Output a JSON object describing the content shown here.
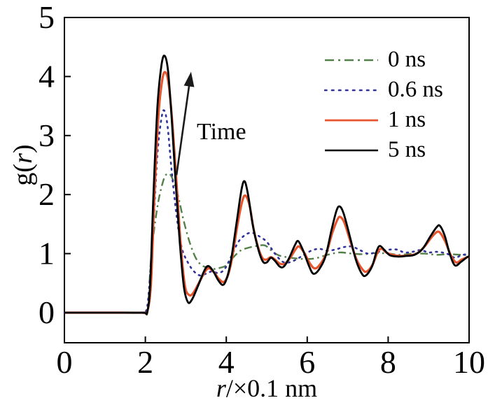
{
  "figure": {
    "background": "#ffffff"
  },
  "axis": {
    "x_title_italic": "r",
    "x_title_rest": "/×0.1 nm",
    "y_title_pre": "g(",
    "y_title_italic": "r",
    "y_title_post": ")"
  },
  "chart_data": {
    "type": "line",
    "title": "",
    "xlabel": "r/×0.1 nm",
    "ylabel": "g(r)",
    "xlim": [
      0,
      10
    ],
    "ylim": [
      -0.51,
      5
    ],
    "x_ticks": [
      0,
      2,
      4,
      6,
      8,
      10
    ],
    "y_ticks": [
      0,
      1,
      2,
      3,
      4,
      5
    ],
    "grid": false,
    "legend_position": "upper-right",
    "legend_frame": false,
    "annotation": {
      "text": "Time",
      "arrow_from": [
        2.77,
        2.33
      ],
      "arrow_to": [
        3.13,
        4.08
      ]
    },
    "series": [
      {
        "name": "0 ns",
        "color": "#538048",
        "style": "dash-dot",
        "width": 2.4,
        "points": [
          [
            0,
            0
          ],
          [
            0.5,
            0
          ],
          [
            1,
            0
          ],
          [
            1.5,
            0
          ],
          [
            1.9,
            0
          ],
          [
            2.0,
            0
          ],
          [
            2.06,
            0.05
          ],
          [
            2.15,
            1.0
          ],
          [
            2.3,
            1.8
          ],
          [
            2.45,
            2.25
          ],
          [
            2.55,
            2.35
          ],
          [
            2.65,
            2.3
          ],
          [
            2.8,
            2.0
          ],
          [
            2.95,
            1.55
          ],
          [
            3.1,
            1.18
          ],
          [
            3.25,
            0.92
          ],
          [
            3.4,
            0.8
          ],
          [
            3.55,
            0.76
          ],
          [
            3.7,
            0.74
          ],
          [
            3.85,
            0.76
          ],
          [
            4.0,
            0.8
          ],
          [
            4.15,
            0.92
          ],
          [
            4.35,
            1.05
          ],
          [
            4.55,
            1.1
          ],
          [
            4.75,
            1.13
          ],
          [
            4.95,
            1.14
          ],
          [
            5.1,
            1.06
          ],
          [
            5.3,
            0.97
          ],
          [
            5.6,
            0.93
          ],
          [
            5.9,
            0.91
          ],
          [
            6.2,
            0.92
          ],
          [
            6.5,
            0.98
          ],
          [
            6.8,
            1.02
          ],
          [
            7.1,
            1.0
          ],
          [
            7.4,
            0.99
          ],
          [
            7.7,
            1.01
          ],
          [
            8.0,
            1.0
          ],
          [
            8.3,
            0.98
          ],
          [
            8.6,
            1.0
          ],
          [
            8.9,
            1.0
          ],
          [
            9.2,
            0.98
          ],
          [
            9.5,
            0.99
          ],
          [
            9.8,
            0.98
          ],
          [
            10,
            0.97
          ]
        ]
      },
      {
        "name": "0.6 ns",
        "color": "#32329b",
        "style": "dotted",
        "width": 2.6,
        "points": [
          [
            0,
            0
          ],
          [
            0.5,
            0
          ],
          [
            1,
            0
          ],
          [
            1.5,
            0
          ],
          [
            1.9,
            0
          ],
          [
            2.0,
            0
          ],
          [
            2.08,
            0.3
          ],
          [
            2.2,
            1.5
          ],
          [
            2.3,
            2.7
          ],
          [
            2.4,
            3.3
          ],
          [
            2.47,
            3.42
          ],
          [
            2.55,
            3.15
          ],
          [
            2.65,
            2.4
          ],
          [
            2.78,
            1.6
          ],
          [
            2.9,
            1.1
          ],
          [
            3.05,
            0.85
          ],
          [
            3.2,
            0.7
          ],
          [
            3.35,
            0.63
          ],
          [
            3.5,
            0.66
          ],
          [
            3.65,
            0.7
          ],
          [
            3.8,
            0.67
          ],
          [
            3.95,
            0.73
          ],
          [
            4.1,
            0.92
          ],
          [
            4.3,
            1.2
          ],
          [
            4.5,
            1.33
          ],
          [
            4.65,
            1.35
          ],
          [
            4.8,
            1.3
          ],
          [
            5.0,
            1.2
          ],
          [
            5.2,
            1.0
          ],
          [
            5.4,
            0.86
          ],
          [
            5.6,
            0.86
          ],
          [
            5.85,
            0.95
          ],
          [
            6.1,
            1.05
          ],
          [
            6.3,
            1.08
          ],
          [
            6.5,
            1.05
          ],
          [
            6.7,
            1.07
          ],
          [
            6.9,
            1.11
          ],
          [
            7.1,
            1.12
          ],
          [
            7.3,
            1.06
          ],
          [
            7.5,
            1.0
          ],
          [
            7.7,
            1.02
          ],
          [
            7.95,
            1.06
          ],
          [
            8.2,
            1.07
          ],
          [
            8.4,
            1.02
          ],
          [
            8.6,
            1.03
          ],
          [
            8.8,
            1.06
          ],
          [
            9.0,
            1.02
          ],
          [
            9.2,
            1.03
          ],
          [
            9.45,
            1.0
          ],
          [
            9.65,
            0.93
          ],
          [
            9.8,
            0.97
          ],
          [
            10,
            1.0
          ]
        ]
      },
      {
        "name": "1 ns",
        "color": "#e6552d",
        "style": "solid",
        "width": 3.2,
        "points": [
          [
            0,
            0
          ],
          [
            0.5,
            0
          ],
          [
            1,
            0
          ],
          [
            1.5,
            0
          ],
          [
            1.95,
            0
          ],
          [
            2.05,
            0.02
          ],
          [
            2.14,
            0.5
          ],
          [
            2.22,
            1.9
          ],
          [
            2.32,
            3.3
          ],
          [
            2.42,
            3.95
          ],
          [
            2.5,
            4.07
          ],
          [
            2.58,
            3.85
          ],
          [
            2.68,
            3.1
          ],
          [
            2.78,
            2.1
          ],
          [
            2.88,
            1.1
          ],
          [
            2.98,
            0.45
          ],
          [
            3.08,
            0.3
          ],
          [
            3.18,
            0.33
          ],
          [
            3.32,
            0.5
          ],
          [
            3.48,
            0.7
          ],
          [
            3.58,
            0.75
          ],
          [
            3.7,
            0.68
          ],
          [
            3.82,
            0.57
          ],
          [
            3.94,
            0.52
          ],
          [
            4.05,
            0.65
          ],
          [
            4.15,
            0.95
          ],
          [
            4.28,
            1.5
          ],
          [
            4.4,
            1.9
          ],
          [
            4.48,
            1.98
          ],
          [
            4.58,
            1.8
          ],
          [
            4.68,
            1.4
          ],
          [
            4.8,
            1.08
          ],
          [
            4.9,
            0.92
          ],
          [
            5.0,
            0.9
          ],
          [
            5.1,
            0.94
          ],
          [
            5.2,
            0.9
          ],
          [
            5.32,
            0.83
          ],
          [
            5.45,
            0.83
          ],
          [
            5.58,
            0.93
          ],
          [
            5.72,
            1.08
          ],
          [
            5.8,
            1.12
          ],
          [
            5.92,
            1.02
          ],
          [
            6.07,
            0.83
          ],
          [
            6.18,
            0.75
          ],
          [
            6.3,
            0.8
          ],
          [
            6.47,
            1.0
          ],
          [
            6.62,
            1.35
          ],
          [
            6.75,
            1.58
          ],
          [
            6.82,
            1.62
          ],
          [
            6.92,
            1.52
          ],
          [
            7.07,
            1.2
          ],
          [
            7.22,
            0.9
          ],
          [
            7.38,
            0.72
          ],
          [
            7.48,
            0.7
          ],
          [
            7.62,
            0.82
          ],
          [
            7.75,
            1.04
          ],
          [
            7.85,
            1.08
          ],
          [
            7.95,
            1.02
          ],
          [
            8.1,
            0.98
          ],
          [
            8.3,
            0.96
          ],
          [
            8.5,
            0.97
          ],
          [
            8.7,
            1.0
          ],
          [
            8.9,
            1.12
          ],
          [
            9.1,
            1.3
          ],
          [
            9.25,
            1.37
          ],
          [
            9.4,
            1.22
          ],
          [
            9.55,
            0.97
          ],
          [
            9.68,
            0.85
          ],
          [
            9.82,
            0.9
          ],
          [
            10,
            0.95
          ]
        ]
      },
      {
        "name": "5 ns",
        "color": "#000000",
        "style": "solid",
        "width": 2.8,
        "points": [
          [
            0,
            0
          ],
          [
            0.5,
            0
          ],
          [
            1,
            0
          ],
          [
            1.5,
            0
          ],
          [
            1.95,
            0
          ],
          [
            2.05,
            0.02
          ],
          [
            2.12,
            0.5
          ],
          [
            2.2,
            2.0
          ],
          [
            2.3,
            3.5
          ],
          [
            2.4,
            4.2
          ],
          [
            2.48,
            4.35
          ],
          [
            2.56,
            4.1
          ],
          [
            2.65,
            3.3
          ],
          [
            2.75,
            2.2
          ],
          [
            2.85,
            1.2
          ],
          [
            2.95,
            0.45
          ],
          [
            3.05,
            0.18
          ],
          [
            3.15,
            0.22
          ],
          [
            3.3,
            0.45
          ],
          [
            3.45,
            0.7
          ],
          [
            3.55,
            0.79
          ],
          [
            3.68,
            0.7
          ],
          [
            3.8,
            0.55
          ],
          [
            3.92,
            0.47
          ],
          [
            4.02,
            0.6
          ],
          [
            4.12,
            0.9
          ],
          [
            4.25,
            1.5
          ],
          [
            4.38,
            2.1
          ],
          [
            4.46,
            2.22
          ],
          [
            4.55,
            1.95
          ],
          [
            4.65,
            1.5
          ],
          [
            4.78,
            1.1
          ],
          [
            4.9,
            0.87
          ],
          [
            5.0,
            0.85
          ],
          [
            5.1,
            0.93
          ],
          [
            5.2,
            0.88
          ],
          [
            5.32,
            0.78
          ],
          [
            5.42,
            0.78
          ],
          [
            5.55,
            0.92
          ],
          [
            5.7,
            1.15
          ],
          [
            5.78,
            1.21
          ],
          [
            5.9,
            1.05
          ],
          [
            6.05,
            0.78
          ],
          [
            6.15,
            0.66
          ],
          [
            6.28,
            0.72
          ],
          [
            6.45,
            0.95
          ],
          [
            6.6,
            1.4
          ],
          [
            6.72,
            1.72
          ],
          [
            6.8,
            1.8
          ],
          [
            6.9,
            1.68
          ],
          [
            7.05,
            1.3
          ],
          [
            7.2,
            0.9
          ],
          [
            7.35,
            0.66
          ],
          [
            7.45,
            0.63
          ],
          [
            7.6,
            0.78
          ],
          [
            7.72,
            1.05
          ],
          [
            7.8,
            1.13
          ],
          [
            7.92,
            1.05
          ],
          [
            8.05,
            0.97
          ],
          [
            8.25,
            0.95
          ],
          [
            8.45,
            0.96
          ],
          [
            8.65,
            0.98
          ],
          [
            8.85,
            1.08
          ],
          [
            9.05,
            1.3
          ],
          [
            9.2,
            1.45
          ],
          [
            9.28,
            1.47
          ],
          [
            9.4,
            1.3
          ],
          [
            9.52,
            1.0
          ],
          [
            9.65,
            0.8
          ],
          [
            9.8,
            0.86
          ],
          [
            9.95,
            0.94
          ],
          [
            10,
            0.95
          ]
        ]
      }
    ]
  }
}
